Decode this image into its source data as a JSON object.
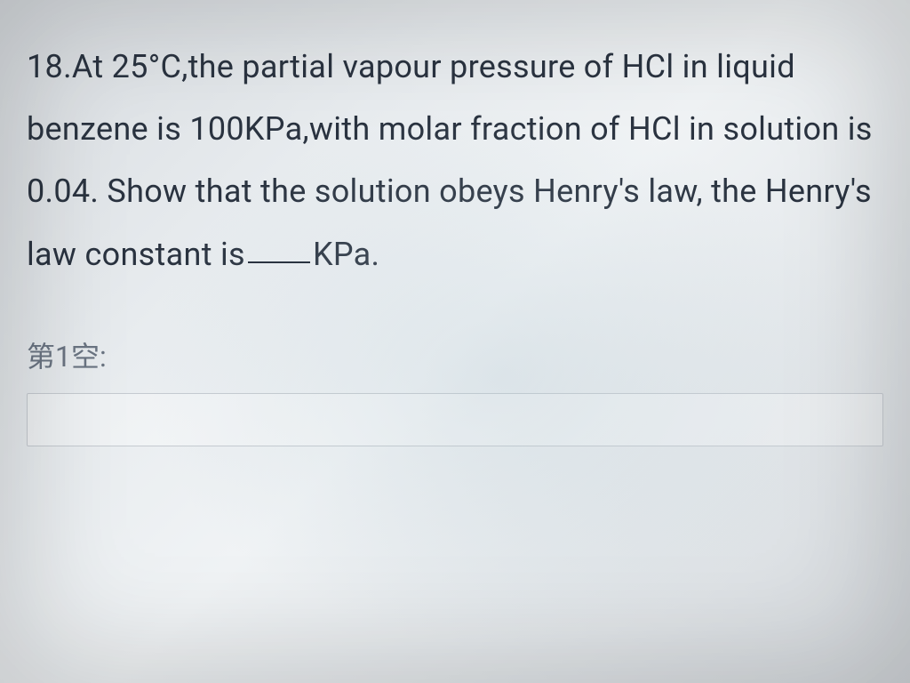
{
  "question": {
    "number": "18",
    "text_part1": "18.At 25°C,the partial vapour pressure of HCl in liquid benzene is 100KPa,with molar fraction of HCl in solution is 0.04. Show that the solution obeys Henry's law, the Henry's law constant is",
    "text_part2": "KPa.",
    "blank_label": "第1空:",
    "answer_placeholder": ""
  },
  "styling": {
    "text_color": "#2a3340",
    "label_color": "#6a7482",
    "background_gradient_start": "#d8dce0",
    "background_gradient_end": "#d5d9dd",
    "font_size_main": 36,
    "font_size_label": 32,
    "line_height": 1.95,
    "border_color": "#c5cad0"
  }
}
